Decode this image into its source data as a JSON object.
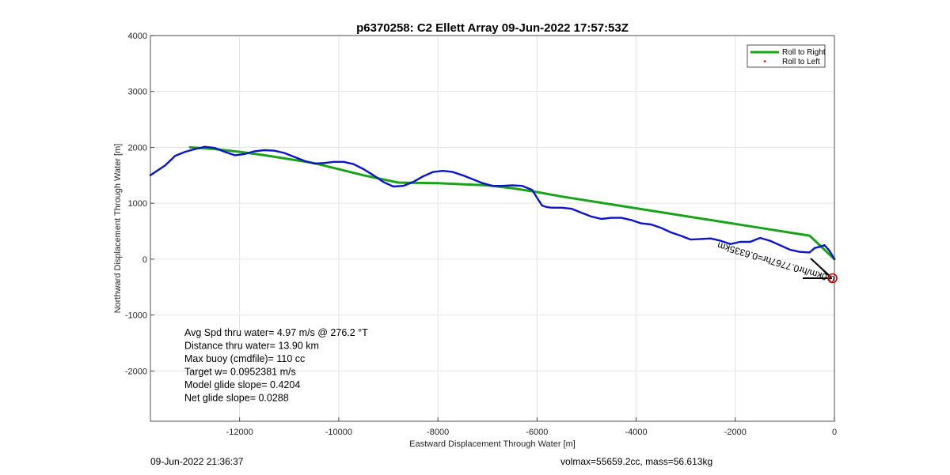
{
  "chart_data": {
    "type": "line",
    "title": "p6370258: C2 Ellett Array 09-Jun-2022 17:57:53Z",
    "xlabel": "Eastward Displacement Through Water [m]",
    "ylabel": "Northward Displacement Through Water [m]",
    "xlim": [
      -13800,
      0
    ],
    "ylim": [
      -2900,
      4000
    ],
    "xticks": [
      -12000,
      -10000,
      -8000,
      -6000,
      -4000,
      -2000,
      0
    ],
    "yticks": [
      -2000,
      -1000,
      0,
      1000,
      2000,
      3000,
      4000
    ],
    "grid": true,
    "legend_position": "top-right",
    "series": [
      {
        "name": "Roll to Right",
        "color": "#1aa31a",
        "x": [
          0,
          -500,
          -1500,
          -2500,
          -3500,
          -4500,
          -5500,
          -6000,
          -6500,
          -7000,
          -8000,
          -8800,
          -9500,
          -10500,
          -11500,
          -12000,
          -12500,
          -13000
        ],
        "y": [
          0,
          420,
          560,
          700,
          840,
          980,
          1120,
          1200,
          1270,
          1320,
          1360,
          1370,
          1500,
          1720,
          1860,
          1920,
          1970,
          2000
        ]
      },
      {
        "name": "Roll to Left",
        "color": "#ff0000",
        "x": [],
        "y": []
      },
      {
        "name": "",
        "color": "#0a14c8",
        "x": [
          0,
          -100,
          -200,
          -300,
          -400,
          -500,
          -700,
          -900,
          -1100,
          -1300,
          -1500,
          -1700,
          -1900,
          -2100,
          -2300,
          -2500,
          -2700,
          -2900,
          -3100,
          -3300,
          -3500,
          -3700,
          -3900,
          -4100,
          -4300,
          -4500,
          -4700,
          -4900,
          -5100,
          -5300,
          -5500,
          -5700,
          -5800,
          -5900,
          -6000,
          -6100,
          -6300,
          -6500,
          -6700,
          -6900,
          -7100,
          -7300,
          -7500,
          -7700,
          -7900,
          -8100,
          -8300,
          -8500,
          -8700,
          -8900,
          -9100,
          -9300,
          -9500,
          -9700,
          -9900,
          -10100,
          -10300,
          -10500,
          -10700,
          -10900,
          -11100,
          -11300,
          -11500,
          -11700,
          -11900,
          -12100,
          -12300,
          -12500,
          -12700,
          -12900,
          -13100,
          -13300,
          -13500,
          -13800
        ],
        "y": [
          0,
          150,
          250,
          220,
          200,
          120,
          130,
          170,
          250,
          330,
          380,
          310,
          310,
          270,
          330,
          370,
          360,
          350,
          420,
          480,
          560,
          620,
          640,
          700,
          740,
          740,
          720,
          760,
          830,
          900,
          920,
          920,
          930,
          960,
          1100,
          1240,
          1310,
          1320,
          1310,
          1310,
          1360,
          1430,
          1500,
          1560,
          1580,
          1560,
          1480,
          1380,
          1310,
          1300,
          1380,
          1500,
          1610,
          1700,
          1740,
          1740,
          1720,
          1710,
          1760,
          1830,
          1900,
          1940,
          1950,
          1930,
          1880,
          1860,
          1920,
          1990,
          2010,
          1970,
          1920,
          1850,
          1680,
          1500
        ]
      }
    ],
    "annotations": {
      "rotated_label": "0.0km/hr0.7767hr=0.6335km",
      "stats": [
        "Avg Spd thru water=  4.97 m/s @ 276.2 °T",
        "Distance thru water= 13.90 km",
        "Max buoy (cmdfile)= 110 cc",
        "Target w= 0.0952381 m/s",
        "Model glide slope= 0.4204",
        "Net glide slope= 0.0288"
      ]
    }
  },
  "footer": {
    "left": "09-Jun-2022 21:36:37",
    "right": "volmax=55659.2cc, mass=56.613kg"
  }
}
